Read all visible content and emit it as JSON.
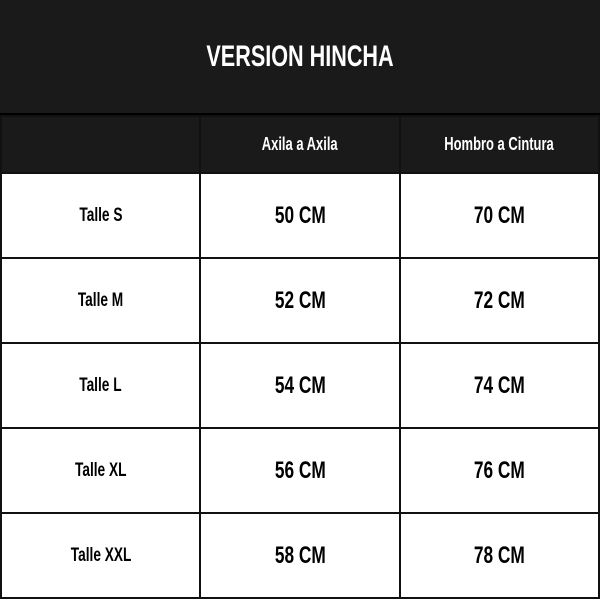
{
  "title": "VERSION HINCHA",
  "columns": [
    "",
    "Axila a Axila",
    "Hombro a Cintura"
  ],
  "rows": [
    {
      "size": "Talle S",
      "axila": "50 CM",
      "hombro": "70 CM"
    },
    {
      "size": "Talle M",
      "axila": "52 CM",
      "hombro": "72 CM"
    },
    {
      "size": "Talle L",
      "axila": "54 CM",
      "hombro": "74 CM"
    },
    {
      "size": "Talle XL",
      "axila": "56 CM",
      "hombro": "76 CM"
    },
    {
      "size": "Talle XXL",
      "axila": "58 CM",
      "hombro": "78 CM"
    }
  ],
  "colors": {
    "header_bg": "#1a1a1a",
    "header_text": "#ffffff",
    "cell_bg": "#ffffff",
    "border": "#111111"
  }
}
